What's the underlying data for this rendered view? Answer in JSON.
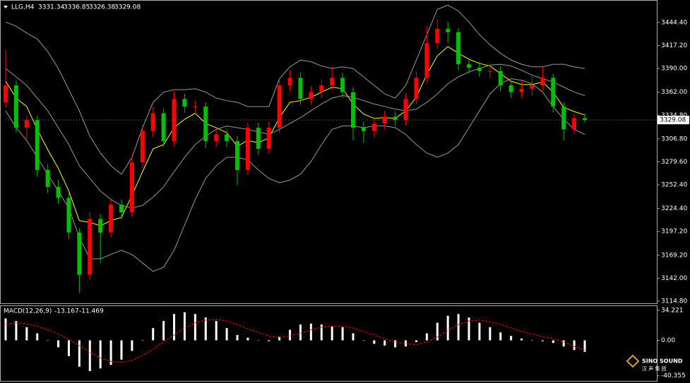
{
  "chart_data": [
    {
      "type": "candlestick",
      "title": "LLG,H4",
      "open": [
        3350,
        3370,
        3320,
        3329,
        3270,
        3250,
        3237,
        3196,
        3146,
        3212,
        3196,
        3229,
        3220,
        3279,
        3316,
        3337,
        3304,
        3354,
        3345,
        3345,
        3304,
        3312,
        3304,
        3270,
        3320,
        3295,
        3320,
        3370,
        3379,
        3354,
        3362,
        3370,
        3379,
        3362,
        3320,
        3316,
        3325,
        3333,
        3329,
        3354,
        3379,
        3420,
        3437,
        3433,
        3395,
        3391,
        3387,
        3387,
        3370,
        3362,
        3366,
        3370,
        3379,
        3345,
        3318,
        3331.34
      ],
      "high": [
        3412,
        3376,
        3335,
        3334,
        3277,
        3258,
        3243,
        3201,
        3220,
        3218,
        3236,
        3235,
        3286,
        3323,
        3345,
        3343,
        3363,
        3360,
        3352,
        3350,
        3319,
        3318,
        3310,
        3326,
        3326,
        3327,
        3378,
        3388,
        3385,
        3369,
        3377,
        3392,
        3385,
        3368,
        3327,
        3332,
        3340,
        3339,
        3361,
        3386,
        3440,
        3449,
        3445,
        3438,
        3402,
        3398,
        3395,
        3393,
        3376,
        3375,
        3380,
        3391,
        3384,
        3350,
        3337,
        3336.85
      ],
      "low": [
        3344,
        3314,
        3306,
        3262,
        3243,
        3230,
        3188,
        3125,
        3140,
        3160,
        3190,
        3212,
        3214,
        3272,
        3309,
        3297,
        3298,
        3338,
        3336,
        3296,
        3297,
        3297,
        3252,
        3264,
        3288,
        3289,
        3314,
        3363,
        3347,
        3347,
        3355,
        3364,
        3355,
        3305,
        3302,
        3309,
        3318,
        3322,
        3323,
        3348,
        3373,
        3413,
        3420,
        3388,
        3384,
        3380,
        3378,
        3363,
        3355,
        3355,
        3358,
        3363,
        3338,
        3305,
        3312,
        3326.38
      ],
      "close": [
        3370,
        3320,
        3329,
        3270,
        3250,
        3237,
        3196,
        3146,
        3212,
        3196,
        3229,
        3220,
        3279,
        3316,
        3337,
        3304,
        3354,
        3345,
        3345,
        3304,
        3312,
        3304,
        3270,
        3320,
        3295,
        3320,
        3370,
        3379,
        3354,
        3362,
        3370,
        3379,
        3362,
        3320,
        3316,
        3325,
        3333,
        3329,
        3354,
        3379,
        3420,
        3437,
        3433,
        3395,
        3391,
        3387,
        3387,
        3370,
        3362,
        3366,
        3370,
        3379,
        3345,
        3318,
        3331.34,
        3329.08
      ],
      "up_color": "#ff0000",
      "down_color": "#00c000",
      "lines": [
        {
          "color": "#ffff00",
          "values": [
            3375,
            3355,
            3345,
            3318,
            3294,
            3272,
            3245,
            3210,
            3208,
            3204,
            3210,
            3214,
            3240,
            3268,
            3295,
            3300,
            3320,
            3330,
            3337,
            3325,
            3320,
            3314,
            3298,
            3305,
            3302,
            3308,
            3332,
            3350,
            3352,
            3356,
            3362,
            3368,
            3366,
            3348,
            3336,
            3331,
            3332,
            3331,
            3340,
            3356,
            3383,
            3405,
            3416,
            3408,
            3401,
            3396,
            3393,
            3384,
            3375,
            3371,
            3371,
            3374,
            3362,
            3344,
            3339,
            3335
          ]
        },
        {
          "color": "#9a9a9a",
          "values": [
            3390,
            3380,
            3370,
            3355,
            3340,
            3320,
            3300,
            3275,
            3260,
            3245,
            3235,
            3228,
            3225,
            3228,
            3238,
            3250,
            3268,
            3285,
            3300,
            3310,
            3318,
            3322,
            3320,
            3318,
            3315,
            3312,
            3318,
            3325,
            3332,
            3340,
            3348,
            3355,
            3358,
            3356,
            3352,
            3348,
            3345,
            3342,
            3340,
            3342,
            3350,
            3360,
            3372,
            3380,
            3386,
            3390,
            3394,
            3395,
            3393,
            3388,
            3382,
            3378,
            3374,
            3368,
            3362,
            3358
          ]
        },
        {
          "color": "#9a9a9a",
          "values": [
            3445,
            3440,
            3432,
            3425,
            3410,
            3390,
            3365,
            3340,
            3310,
            3290,
            3275,
            3265,
            3285,
            3320,
            3350,
            3362,
            3365,
            3365,
            3366,
            3362,
            3355,
            3352,
            3350,
            3345,
            3345,
            3345,
            3378,
            3392,
            3400,
            3398,
            3393,
            3390,
            3392,
            3390,
            3380,
            3370,
            3360,
            3355,
            3370,
            3400,
            3430,
            3460,
            3465,
            3458,
            3445,
            3430,
            3418,
            3408,
            3400,
            3395,
            3392,
            3392,
            3395,
            3395,
            3392,
            3390
          ]
        },
        {
          "color": "#9a9a9a",
          "values": [
            3340,
            3320,
            3305,
            3285,
            3265,
            3245,
            3225,
            3190,
            3165,
            3165,
            3170,
            3175,
            3170,
            3160,
            3150,
            3155,
            3175,
            3205,
            3235,
            3260,
            3275,
            3285,
            3285,
            3282,
            3270,
            3260,
            3255,
            3258,
            3265,
            3280,
            3300,
            3318,
            3322,
            3322,
            3320,
            3322,
            3322,
            3320,
            3312,
            3300,
            3290,
            3285,
            3290,
            3300,
            3320,
            3340,
            3360,
            3372,
            3378,
            3376,
            3372,
            3362,
            3345,
            3330,
            3318,
            3312
          ]
        }
      ],
      "ylim": [
        3112.3,
        3470.2
      ],
      "yticks": [
        {
          "value": 3444.4,
          "label": "3444.40"
        },
        {
          "value": 3417.2,
          "label": "3417.20"
        },
        {
          "value": 3390,
          "label": "3390.00"
        },
        {
          "value": 3362,
          "label": "3362.00"
        },
        {
          "value": 3334.8,
          "label": "3334.80"
        },
        {
          "value": 3306.8,
          "label": "3306.80"
        },
        {
          "value": 3279.6,
          "label": "3279.60"
        },
        {
          "value": 3252.4,
          "label": "3252.40"
        },
        {
          "value": 3224.4,
          "label": "3224.40"
        },
        {
          "value": 3197.2,
          "label": "3197.20"
        },
        {
          "value": 3169.2,
          "label": "3169.20"
        },
        {
          "value": 3142,
          "label": "3142.00"
        },
        {
          "value": 3114.8,
          "label": "3114.80"
        }
      ]
    },
    {
      "type": "macd",
      "title": "MACD(12,26,9)",
      "histogram": {
        "color": "#ffffff",
        "values": [
          25,
          22,
          15,
          8,
          0,
          -8,
          -18,
          -30,
          -35,
          -32,
          -28,
          -22,
          -12,
          0,
          14,
          22,
          30,
          32,
          30,
          26,
          22,
          14,
          6,
          3,
          0,
          -1,
          4,
          12,
          18,
          19,
          18,
          16,
          15,
          8,
          0,
          -4,
          -6,
          -8,
          -7,
          -2,
          8,
          20,
          28,
          30,
          26,
          20,
          15,
          9,
          5,
          2,
          0,
          -1,
          -3,
          -7,
          -11,
          -13.167
        ]
      },
      "signal": {
        "color": "#ff0000",
        "values": [
          18,
          20,
          19,
          16,
          12,
          7,
          1,
          -6,
          -14,
          -20,
          -24,
          -25,
          -23,
          -17,
          -10,
          -2,
          6,
          14,
          20,
          23,
          24,
          22,
          18,
          13,
          9,
          5,
          3,
          5,
          8,
          12,
          15,
          16,
          16,
          14,
          10,
          6,
          2,
          -2,
          -4,
          -5,
          -2,
          4,
          11,
          18,
          22,
          23,
          21,
          18,
          14,
          10,
          7,
          4,
          2,
          -2,
          -7,
          -11.469
        ]
      },
      "ylim": [
        -46.2,
        39
      ],
      "yticks": [
        34.221,
        {
          "value": 0,
          "label": "0.00"
        },
        -40.355
      ]
    }
  ],
  "watermark": {
    "name": "SINO SOUND",
    "subtitle": "汉 声 集 团"
  }
}
